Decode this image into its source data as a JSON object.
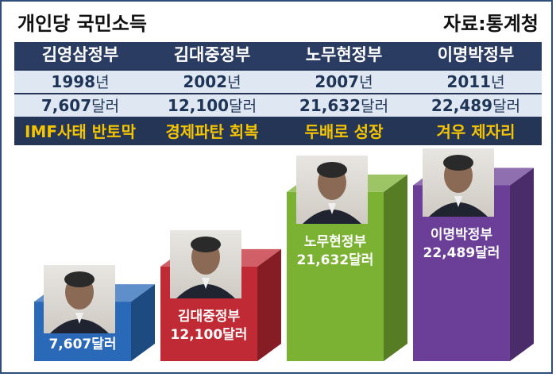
{
  "header": {
    "title": "개인당 국민소득",
    "source": "자료:통계청"
  },
  "unit": "달러",
  "colors": {
    "table_bg": "#243556",
    "header_text": "#ffffff",
    "desc_text": "#f5c400"
  },
  "table": {
    "governments": [
      "김영삼정부",
      "김대중정부",
      "노무현정부",
      "이명박정부"
    ],
    "years": [
      "1998",
      "2002",
      "2007",
      "2011"
    ],
    "year_suffix": "년",
    "incomes": [
      "7,607",
      "12,100",
      "21,632",
      "22,489"
    ],
    "descriptions": [
      "IMF사태 반토막",
      "경제파탄 회복",
      "두배로 성장",
      "겨우 제자리"
    ]
  },
  "chart_data": {
    "type": "bar",
    "title": "개인당 국민소득",
    "categories": [
      "김영삼정부",
      "김대중정부",
      "노무현정부",
      "이명박정부"
    ],
    "values": [
      7607,
      12100,
      21632,
      22489
    ],
    "value_labels": [
      "7,607달러",
      "12,100달러",
      "21,632달러",
      "22,489달러"
    ],
    "colors": [
      "#2a69b8",
      "#c02a34",
      "#7cb233",
      "#6b3f97"
    ],
    "xlabel": "",
    "ylabel": ""
  }
}
